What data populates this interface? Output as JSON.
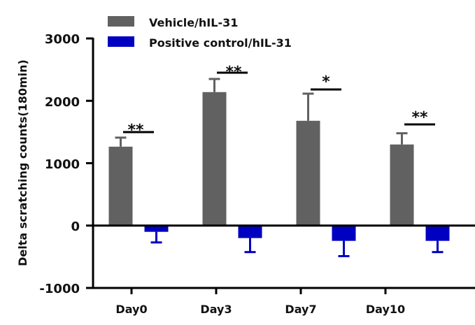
{
  "chart_data": {
    "type": "bar",
    "title": "",
    "xlabel": "",
    "ylabel": "Delta scratching counts(180min)",
    "ylim": [
      -1000,
      3000
    ],
    "yticks": [
      3000,
      2000,
      1000,
      0,
      -1000
    ],
    "categories": [
      "Day0",
      "Day3",
      "Day7",
      "Day10"
    ],
    "legend_position": "top-left",
    "series": [
      {
        "name": "Vehicle/hIL-31",
        "color": "#616161",
        "values": [
          1265,
          2140,
          1680,
          1300
        ],
        "errors": [
          145,
          210,
          435,
          180
        ]
      },
      {
        "name": "Positive control/hIL-31",
        "color": "#0000c0",
        "values": [
          -100,
          -200,
          -245,
          -245
        ],
        "errors": [
          170,
          225,
          245,
          180
        ]
      }
    ],
    "significance": [
      "**",
      "**",
      "*",
      "**"
    ]
  }
}
